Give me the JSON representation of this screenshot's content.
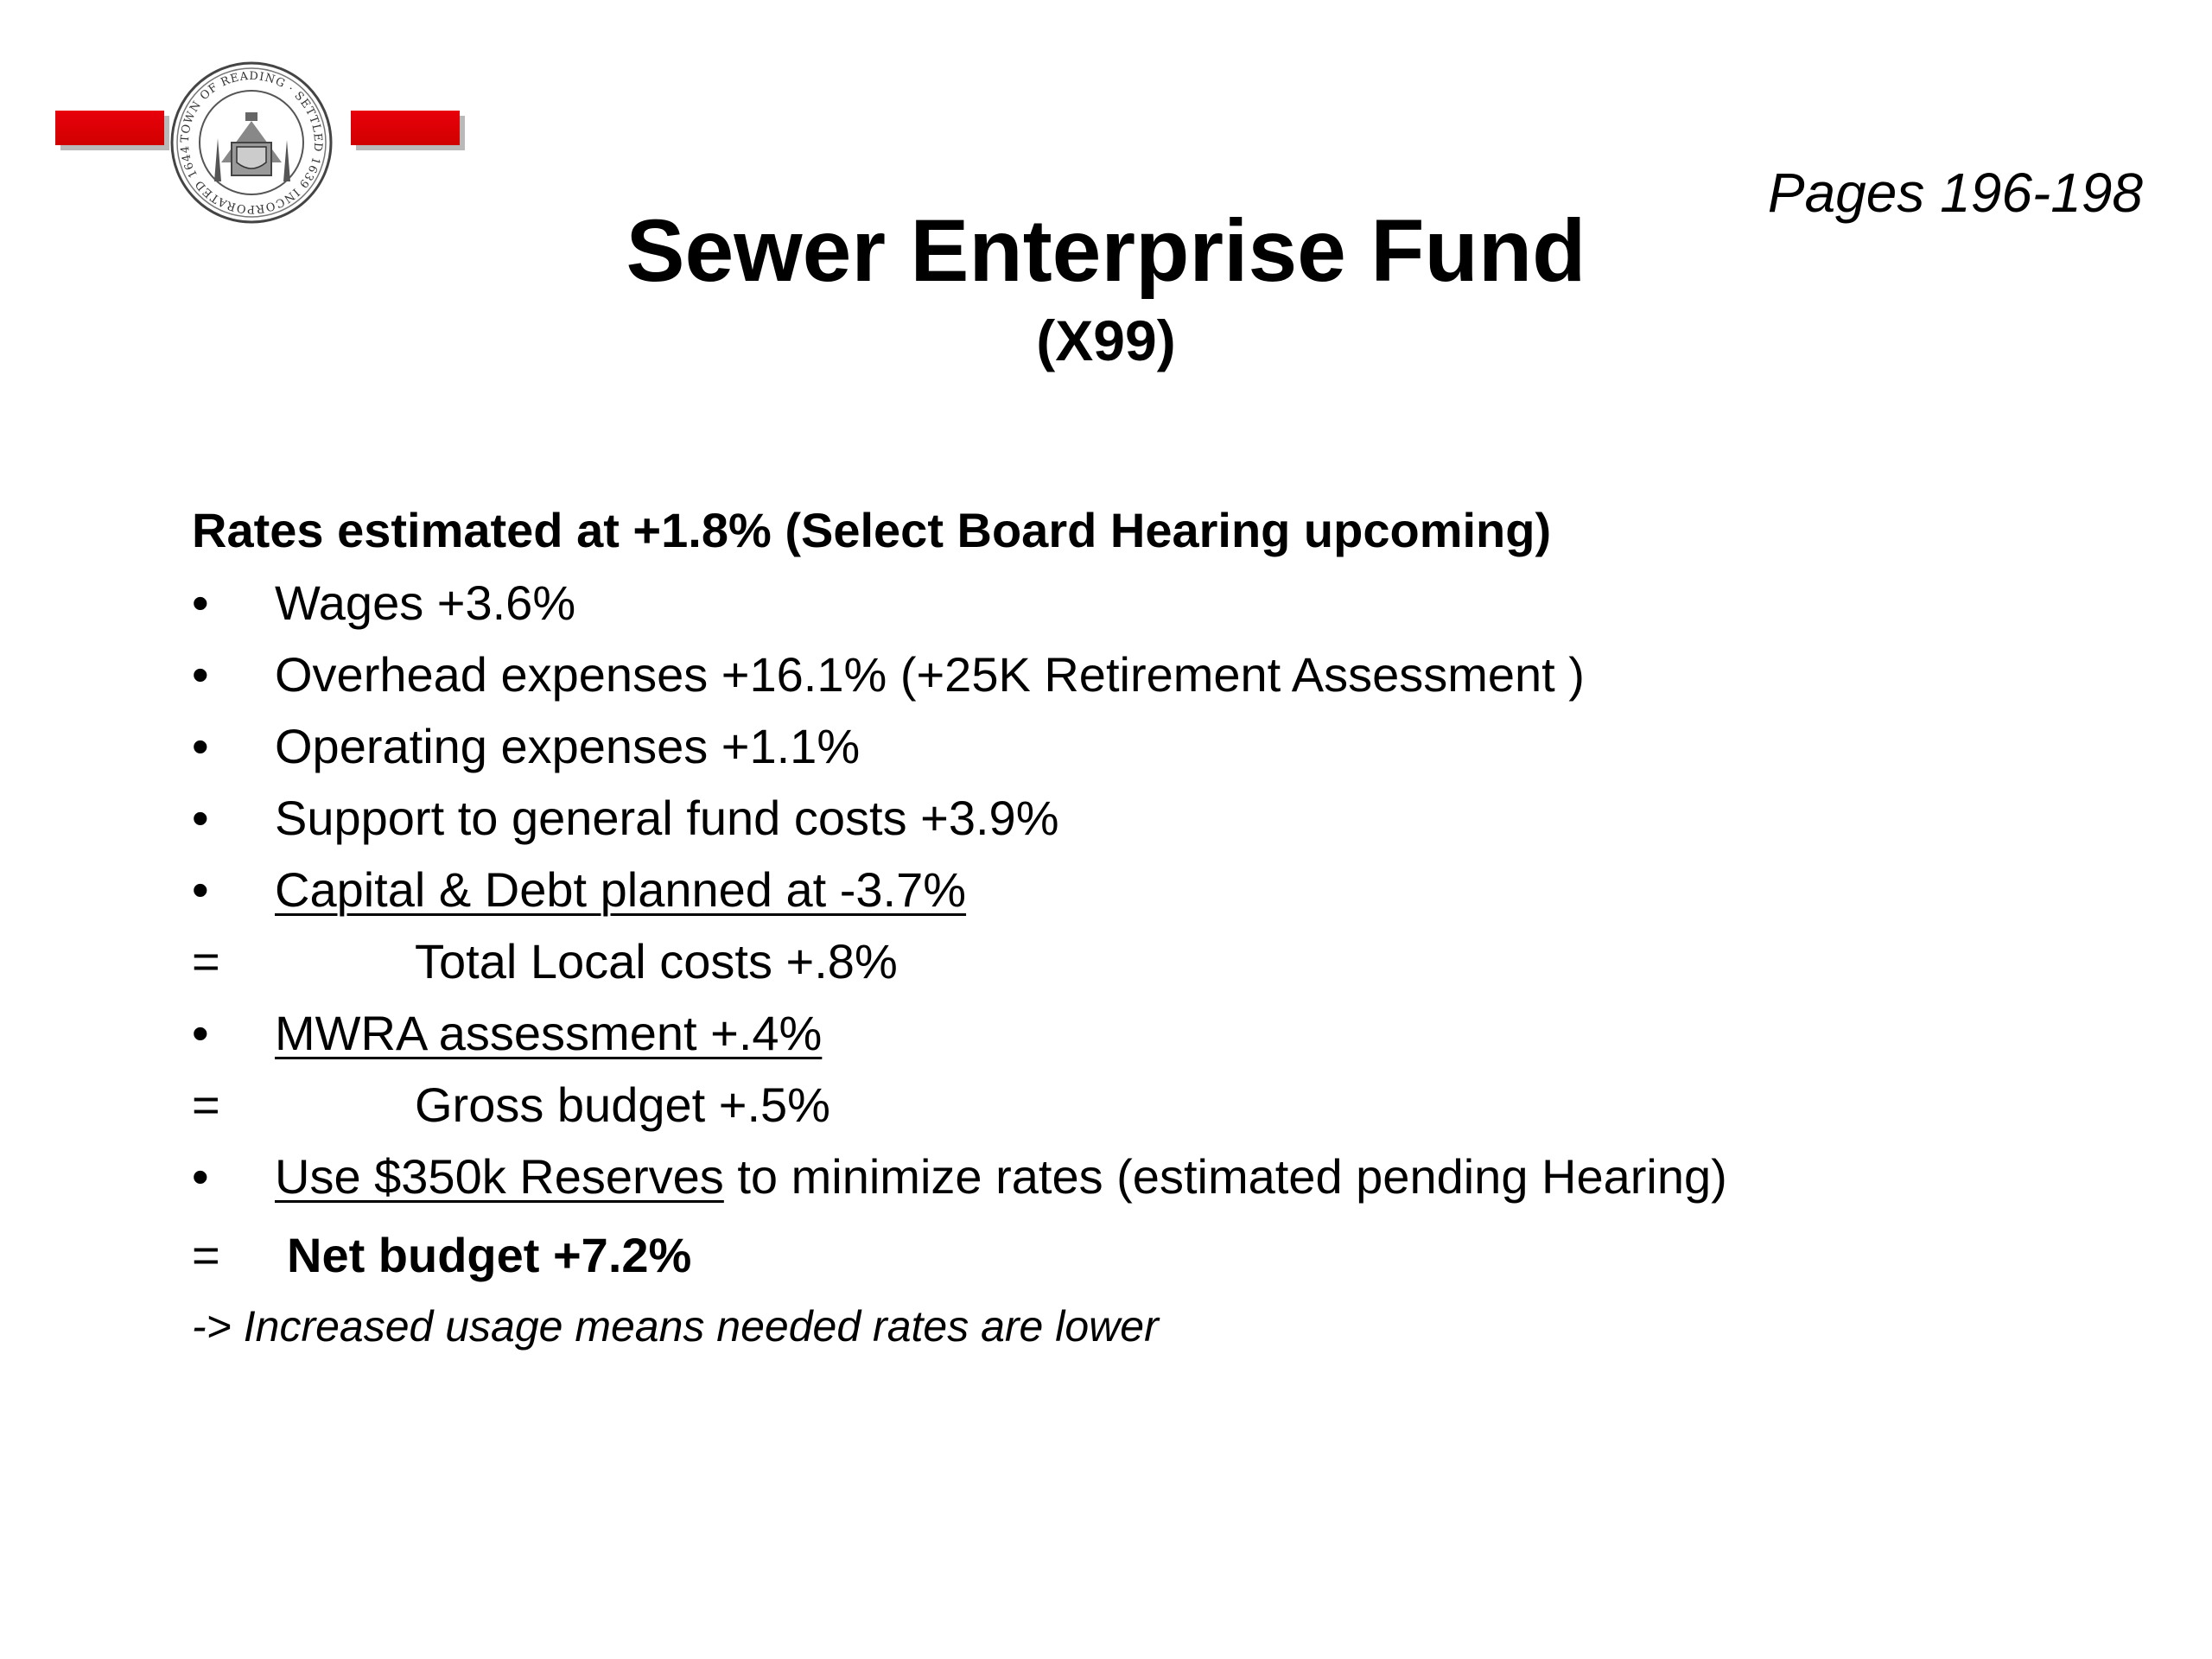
{
  "header": {
    "seal_text": "TOWN OF READING · SETTLED 1639 INCORPORATED 1644",
    "pages_ref": "Pages 196-198",
    "title": "Sewer Enterprise Fund",
    "subtitle": "(X99)"
  },
  "body": {
    "heading": "Rates estimated at +1.8% (Select Board Hearing upcoming)",
    "bullet_marker": "•",
    "equals_marker": "=",
    "items": [
      {
        "text": "Wages +3.6%"
      },
      {
        "text": "Overhead expenses +16.1% (+25K Retirement Assessment )"
      },
      {
        "text": "Operating expenses +1.1%"
      },
      {
        "text": "Support to general fund costs +3.9%"
      },
      {
        "text": "Capital & Debt planned at -3.7%"
      },
      {
        "text": "Total Local costs +.8%"
      },
      {
        "text": "MWRA assessment +.4%"
      },
      {
        "text": "Gross budget +.5%"
      },
      {
        "text": "Use $350k Reserves",
        "suffix": " to minimize rates (estimated pending Hearing)"
      },
      {
        "text": "Net budget +7.2%"
      }
    ],
    "footnote": "-> Increased usage means needed rates are lower"
  },
  "colors": {
    "accent_red": "#e8000a",
    "shadow_gray": "#b9b9b9"
  }
}
